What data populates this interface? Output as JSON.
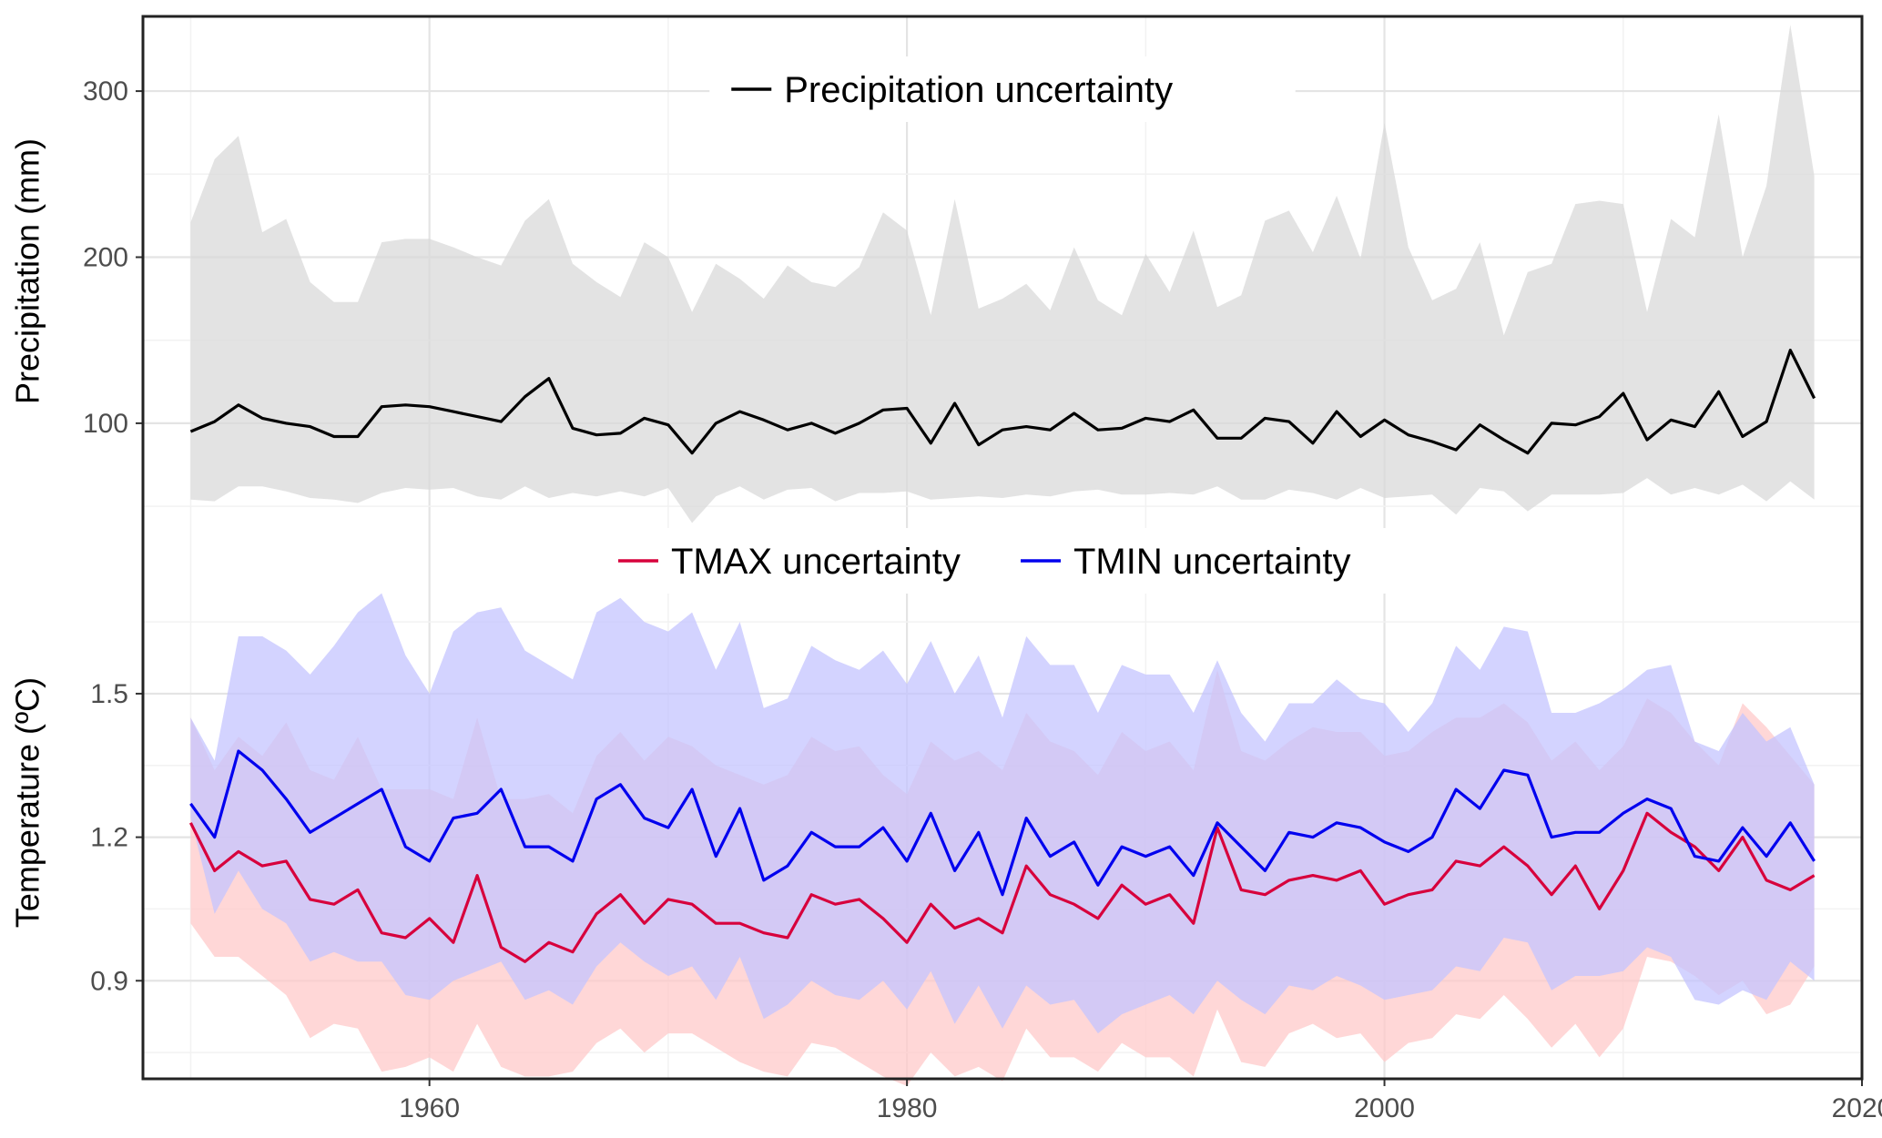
{
  "chart_data": {
    "type": "line",
    "x": [
      1950,
      1951,
      1952,
      1953,
      1954,
      1955,
      1956,
      1957,
      1958,
      1959,
      1960,
      1961,
      1962,
      1963,
      1964,
      1965,
      1966,
      1967,
      1968,
      1969,
      1970,
      1971,
      1972,
      1973,
      1974,
      1975,
      1976,
      1977,
      1978,
      1979,
      1980,
      1981,
      1982,
      1983,
      1984,
      1985,
      1986,
      1987,
      1988,
      1989,
      1990,
      1991,
      1992,
      1993,
      1994,
      1995,
      1996,
      1997,
      1998,
      1999,
      2000,
      2001,
      2002,
      2003,
      2004,
      2005,
      2006,
      2007,
      2008,
      2009,
      2010,
      2011,
      2012,
      2013,
      2014,
      2015,
      2016,
      2017,
      2018
    ],
    "xlim": [
      1948,
      2020
    ],
    "x_ticks": [
      "1960",
      "1980",
      "2000",
      "2020"
    ],
    "grid": true,
    "panels": [
      {
        "id": "precipitation",
        "ylabel": "Precipitation (mm)",
        "ylim": [
          38,
          345
        ],
        "y_ticks": [
          "100",
          "200",
          "300"
        ],
        "legend_position": "top-center",
        "series": [
          {
            "name": "Precipitation uncertainty",
            "color": "#000000",
            "band_color": "#d9d9d9",
            "values": [
              95,
              101,
              111,
              103,
              100,
              98,
              92,
              92,
              110,
              111,
              110,
              107,
              104,
              101,
              116,
              127,
              97,
              93,
              94,
              103,
              99,
              82,
              100,
              107,
              102,
              96,
              100,
              94,
              100,
              108,
              109,
              88,
              112,
              87,
              96,
              98,
              96,
              106,
              96,
              97,
              103,
              101,
              108,
              91,
              91,
              103,
              101,
              88,
              107,
              92,
              102,
              93,
              89,
              84,
              99,
              90,
              82,
              100,
              99,
              104,
              118,
              90,
              102,
              98,
              119,
              92,
              101,
              144,
              115
            ],
            "lower": [
              54,
              53,
              62,
              62,
              59,
              55,
              54,
              52,
              58,
              61,
              60,
              61,
              56,
              54,
              62,
              55,
              58,
              56,
              59,
              56,
              61,
              40,
              56,
              62,
              54,
              60,
              61,
              53,
              58,
              58,
              59,
              54,
              55,
              56,
              55,
              57,
              56,
              59,
              60,
              57,
              57,
              58,
              57,
              62,
              54,
              54,
              60,
              58,
              54,
              61,
              55,
              56,
              57,
              45,
              61,
              59,
              47,
              57,
              57,
              57,
              58,
              67,
              57,
              61,
              57,
              63,
              53,
              65,
              54
            ],
            "upper": [
              221,
              259,
              273,
              215,
              223,
              185,
              173,
              173,
              209,
              211,
              211,
              206,
              200,
              195,
              222,
              235,
              196,
              185,
              176,
              209,
              200,
              167,
              196,
              187,
              175,
              195,
              185,
              182,
              194,
              227,
              216,
              165,
              235,
              169,
              175,
              184,
              168,
              206,
              174,
              165,
              202,
              179,
              216,
              170,
              177,
              222,
              228,
              203,
              237,
              199,
              281,
              206,
              174,
              181,
              209,
              153,
              191,
              196,
              232,
              234,
              232,
              167,
              223,
              212,
              286,
              200,
              243,
              340,
              249
            ]
          }
        ]
      },
      {
        "id": "temperature",
        "ylabel": "Temperature (ºC)",
        "ylim": [
          0.695,
          1.85
        ],
        "y_ticks": [
          "0.9",
          "1.2",
          "1.5"
        ],
        "legend_position": "top-center",
        "series": [
          {
            "name": "TMAX uncertainty",
            "color": "#d7003c",
            "band_color": "#ffc9c9",
            "values": [
              1.23,
              1.13,
              1.17,
              1.14,
              1.15,
              1.07,
              1.06,
              1.09,
              1.0,
              0.99,
              1.03,
              0.98,
              1.12,
              0.97,
              0.94,
              0.98,
              0.96,
              1.04,
              1.08,
              1.02,
              1.07,
              1.06,
              1.02,
              1.02,
              1.0,
              0.99,
              1.08,
              1.06,
              1.07,
              1.03,
              0.98,
              1.06,
              1.01,
              1.03,
              1.0,
              1.14,
              1.08,
              1.06,
              1.03,
              1.1,
              1.06,
              1.08,
              1.02,
              1.22,
              1.09,
              1.08,
              1.11,
              1.12,
              1.11,
              1.13,
              1.06,
              1.08,
              1.09,
              1.15,
              1.14,
              1.18,
              1.14,
              1.08,
              1.14,
              1.05,
              1.13,
              1.25,
              1.21,
              1.18,
              1.13,
              1.2,
              1.11,
              1.09,
              1.12
            ],
            "lower": [
              1.02,
              0.95,
              0.95,
              0.91,
              0.87,
              0.78,
              0.81,
              0.8,
              0.71,
              0.72,
              0.74,
              0.71,
              0.81,
              0.72,
              0.7,
              0.7,
              0.71,
              0.77,
              0.8,
              0.75,
              0.79,
              0.79,
              0.76,
              0.73,
              0.71,
              0.7,
              0.77,
              0.76,
              0.73,
              0.7,
              0.68,
              0.75,
              0.7,
              0.72,
              0.69,
              0.8,
              0.74,
              0.74,
              0.71,
              0.77,
              0.74,
              0.74,
              0.7,
              0.84,
              0.73,
              0.72,
              0.79,
              0.81,
              0.78,
              0.79,
              0.73,
              0.77,
              0.78,
              0.83,
              0.82,
              0.87,
              0.82,
              0.76,
              0.81,
              0.74,
              0.8,
              0.95,
              0.94,
              0.91,
              0.87,
              0.9,
              0.83,
              0.85,
              0.93
            ],
            "upper": [
              1.45,
              1.34,
              1.41,
              1.37,
              1.44,
              1.34,
              1.32,
              1.41,
              1.3,
              1.3,
              1.3,
              1.28,
              1.45,
              1.28,
              1.28,
              1.29,
              1.25,
              1.37,
              1.42,
              1.36,
              1.41,
              1.39,
              1.35,
              1.33,
              1.31,
              1.33,
              1.41,
              1.38,
              1.39,
              1.33,
              1.29,
              1.4,
              1.36,
              1.38,
              1.34,
              1.46,
              1.4,
              1.38,
              1.33,
              1.42,
              1.38,
              1.4,
              1.34,
              1.55,
              1.38,
              1.36,
              1.4,
              1.43,
              1.42,
              1.42,
              1.37,
              1.38,
              1.42,
              1.45,
              1.45,
              1.48,
              1.44,
              1.36,
              1.4,
              1.34,
              1.39,
              1.49,
              1.46,
              1.4,
              1.35,
              1.48,
              1.43,
              1.37,
              1.31
            ]
          },
          {
            "name": "TMIN uncertainty",
            "color": "#0000ee",
            "band_color": "#c4c4ff",
            "values": [
              1.27,
              1.2,
              1.38,
              1.34,
              1.28,
              1.21,
              1.24,
              1.27,
              1.3,
              1.18,
              1.15,
              1.24,
              1.25,
              1.3,
              1.18,
              1.18,
              1.15,
              1.28,
              1.31,
              1.24,
              1.22,
              1.3,
              1.16,
              1.26,
              1.11,
              1.14,
              1.21,
              1.18,
              1.18,
              1.22,
              1.15,
              1.25,
              1.13,
              1.21,
              1.08,
              1.24,
              1.16,
              1.19,
              1.1,
              1.18,
              1.16,
              1.18,
              1.12,
              1.23,
              1.18,
              1.13,
              1.21,
              1.2,
              1.23,
              1.22,
              1.19,
              1.17,
              1.2,
              1.3,
              1.26,
              1.34,
              1.33,
              1.2,
              1.21,
              1.21,
              1.25,
              1.28,
              1.26,
              1.16,
              1.15,
              1.22,
              1.16,
              1.23,
              1.15
            ],
            "lower": [
              1.24,
              1.04,
              1.13,
              1.05,
              1.02,
              0.94,
              0.96,
              0.94,
              0.94,
              0.87,
              0.86,
              0.9,
              0.92,
              0.94,
              0.86,
              0.88,
              0.85,
              0.93,
              0.98,
              0.94,
              0.91,
              0.93,
              0.86,
              0.95,
              0.82,
              0.85,
              0.9,
              0.87,
              0.86,
              0.9,
              0.84,
              0.92,
              0.81,
              0.89,
              0.8,
              0.89,
              0.85,
              0.86,
              0.79,
              0.83,
              0.85,
              0.87,
              0.83,
              0.9,
              0.86,
              0.83,
              0.89,
              0.88,
              0.91,
              0.89,
              0.86,
              0.87,
              0.88,
              0.93,
              0.92,
              0.99,
              0.98,
              0.88,
              0.91,
              0.91,
              0.92,
              0.97,
              0.95,
              0.86,
              0.85,
              0.88,
              0.86,
              0.94,
              0.9
            ],
            "upper": [
              1.45,
              1.36,
              1.62,
              1.62,
              1.59,
              1.54,
              1.6,
              1.67,
              1.71,
              1.58,
              1.5,
              1.63,
              1.67,
              1.68,
              1.59,
              1.56,
              1.53,
              1.67,
              1.7,
              1.65,
              1.63,
              1.67,
              1.55,
              1.65,
              1.47,
              1.49,
              1.6,
              1.57,
              1.55,
              1.59,
              1.52,
              1.61,
              1.5,
              1.58,
              1.45,
              1.62,
              1.56,
              1.56,
              1.46,
              1.56,
              1.54,
              1.54,
              1.46,
              1.57,
              1.46,
              1.4,
              1.48,
              1.48,
              1.53,
              1.49,
              1.48,
              1.42,
              1.48,
              1.6,
              1.55,
              1.64,
              1.63,
              1.46,
              1.46,
              1.48,
              1.51,
              1.55,
              1.56,
              1.4,
              1.38,
              1.46,
              1.4,
              1.43,
              1.31
            ]
          }
        ]
      }
    ]
  }
}
